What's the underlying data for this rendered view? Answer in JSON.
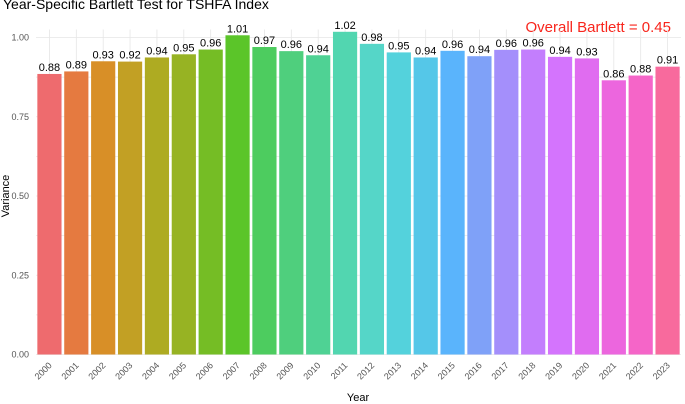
{
  "chart_data": {
    "type": "bar",
    "title": "Year-Specific Bartlett Test for TSHFA Index",
    "xlabel": "Year",
    "ylabel": "Variance",
    "annotation": "Overall Bartlett = 0.45",
    "annotation_color": "#f8251c",
    "ylim": [
      0,
      1.05
    ],
    "yticks": [
      0.0,
      0.25,
      0.5,
      0.75,
      1.0
    ],
    "ytick_labels": [
      "0.00",
      "0.25",
      "0.50",
      "0.75",
      "1.00"
    ],
    "grid": true,
    "legend": "none",
    "categories": [
      "2000",
      "2001",
      "2002",
      "2003",
      "2004",
      "2005",
      "2006",
      "2007",
      "2008",
      "2009",
      "2010",
      "2011",
      "2012",
      "2013",
      "2014",
      "2015",
      "2016",
      "2017",
      "2018",
      "2019",
      "2020",
      "2021",
      "2022",
      "2023"
    ],
    "values": [
      0.885,
      0.893,
      0.925,
      0.924,
      0.937,
      0.947,
      0.962,
      1.007,
      0.97,
      0.957,
      0.944,
      1.018,
      0.98,
      0.953,
      0.937,
      0.958,
      0.941,
      0.961,
      0.962,
      0.939,
      0.934,
      0.865,
      0.88,
      0.908
    ],
    "data_labels": [
      "0.88",
      "0.89",
      "0.93",
      "0.92",
      "0.94",
      "0.95",
      "0.96",
      "1.01",
      "0.97",
      "0.96",
      "0.94",
      "1.02",
      "0.98",
      "0.95",
      "0.94",
      "0.96",
      "0.94",
      "0.96",
      "0.96",
      "0.94",
      "0.93",
      "0.86",
      "0.88",
      "0.91"
    ],
    "colors": [
      "#ee6b6e",
      "#e57a40",
      "#d88f27",
      "#c2a024",
      "#aeab22",
      "#97b323",
      "#75bd25",
      "#5bc529",
      "#4dcc5f",
      "#4fcf7d",
      "#4fd294",
      "#52d6b0",
      "#55d6c8",
      "#54d2dc",
      "#55c7e8",
      "#5ab4fc",
      "#7fa1f8",
      "#a48ffb",
      "#c37efd",
      "#d474fd",
      "#e06cf0",
      "#ec66de",
      "#f565c8",
      "#f86a9d"
    ]
  }
}
